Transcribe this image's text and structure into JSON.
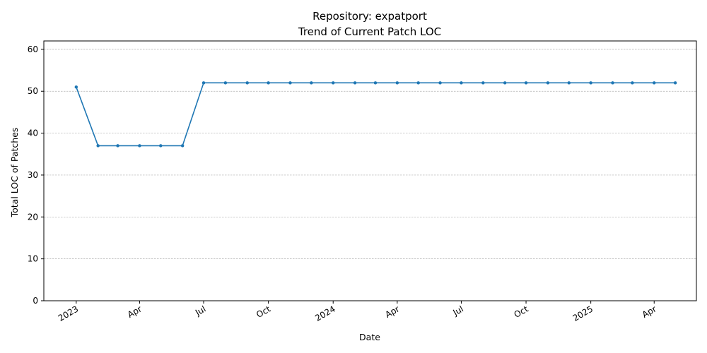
{
  "chart_data": {
    "type": "line",
    "title": "Repository: expatport",
    "subtitle": "Trend of Current Patch LOC",
    "xlabel": "Date",
    "ylabel": "Total LOC of Patches",
    "ylim": [
      0,
      62
    ],
    "xlim": [
      "2022-11-16",
      "2025-05-31"
    ],
    "yticks": [
      0,
      10,
      20,
      30,
      40,
      50,
      60
    ],
    "xticks": [
      {
        "date": "2023-01-01",
        "label": "2023"
      },
      {
        "date": "2023-04-01",
        "label": "Apr"
      },
      {
        "date": "2023-07-01",
        "label": "Jul"
      },
      {
        "date": "2023-10-01",
        "label": "Oct"
      },
      {
        "date": "2024-01-01",
        "label": "2024"
      },
      {
        "date": "2024-04-01",
        "label": "Apr"
      },
      {
        "date": "2024-07-01",
        "label": "Jul"
      },
      {
        "date": "2024-10-01",
        "label": "Oct"
      },
      {
        "date": "2025-01-01",
        "label": "2025"
      },
      {
        "date": "2025-04-01",
        "label": "Apr"
      }
    ],
    "grid": "y-dashed",
    "color": "#1f77b4",
    "x": [
      "2023-01-01",
      "2023-02-01",
      "2023-03-01",
      "2023-04-01",
      "2023-05-01",
      "2023-06-01",
      "2023-07-01",
      "2023-08-01",
      "2023-09-01",
      "2023-10-01",
      "2023-11-01",
      "2023-12-01",
      "2024-01-01",
      "2024-02-01",
      "2024-03-01",
      "2024-04-01",
      "2024-05-01",
      "2024-06-01",
      "2024-07-01",
      "2024-08-01",
      "2024-09-01",
      "2024-10-01",
      "2024-11-01",
      "2024-12-01",
      "2025-01-01",
      "2025-02-01",
      "2025-03-01",
      "2025-04-01",
      "2025-05-01"
    ],
    "series": [
      {
        "values": [
          51,
          37,
          37,
          37,
          37,
          37,
          52,
          52,
          52,
          52,
          52,
          52,
          52,
          52,
          52,
          52,
          52,
          52,
          52,
          52,
          52,
          52,
          52,
          52,
          52,
          52,
          52,
          52,
          52
        ]
      }
    ]
  }
}
